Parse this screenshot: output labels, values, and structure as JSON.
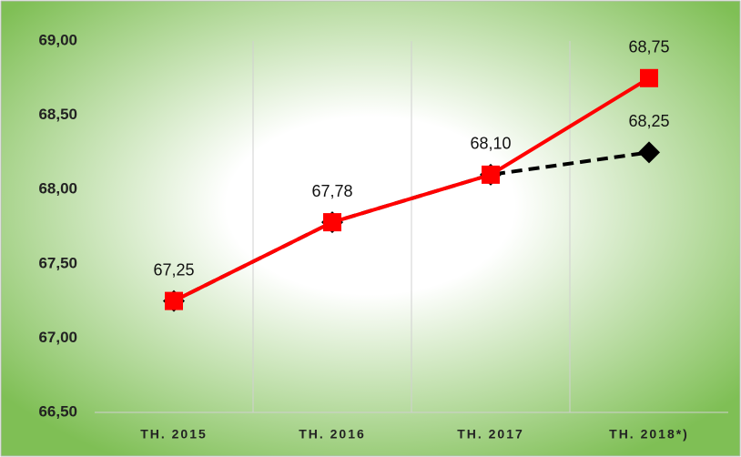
{
  "chart_data": {
    "type": "line",
    "categories": [
      "TH. 2015",
      "TH. 2016",
      "TH. 2017",
      "TH. 2018*)"
    ],
    "series": [
      {
        "color": "#000000",
        "dashed": true,
        "marker": "diamond",
        "values": [
          67.25,
          67.78,
          68.1,
          68.25
        ],
        "value_labels": [
          null,
          null,
          null,
          "68,25"
        ]
      },
      {
        "color": "#ff0000",
        "dashed": false,
        "marker": "square",
        "values": [
          67.25,
          67.78,
          68.1,
          68.75
        ],
        "value_labels": [
          "67,25",
          "67,78",
          "68,10",
          "68,75"
        ]
      }
    ],
    "ylim": [
      66.5,
      69.0
    ],
    "yticks": [
      {
        "value": 66.5,
        "label": "66,50"
      },
      {
        "value": 67.0,
        "label": "67,00"
      },
      {
        "value": 67.5,
        "label": "67,50"
      },
      {
        "value": 68.0,
        "label": "68,00"
      },
      {
        "value": 68.5,
        "label": "68,50"
      },
      {
        "value": 69.0,
        "label": "69,00"
      }
    ],
    "grid": true
  }
}
